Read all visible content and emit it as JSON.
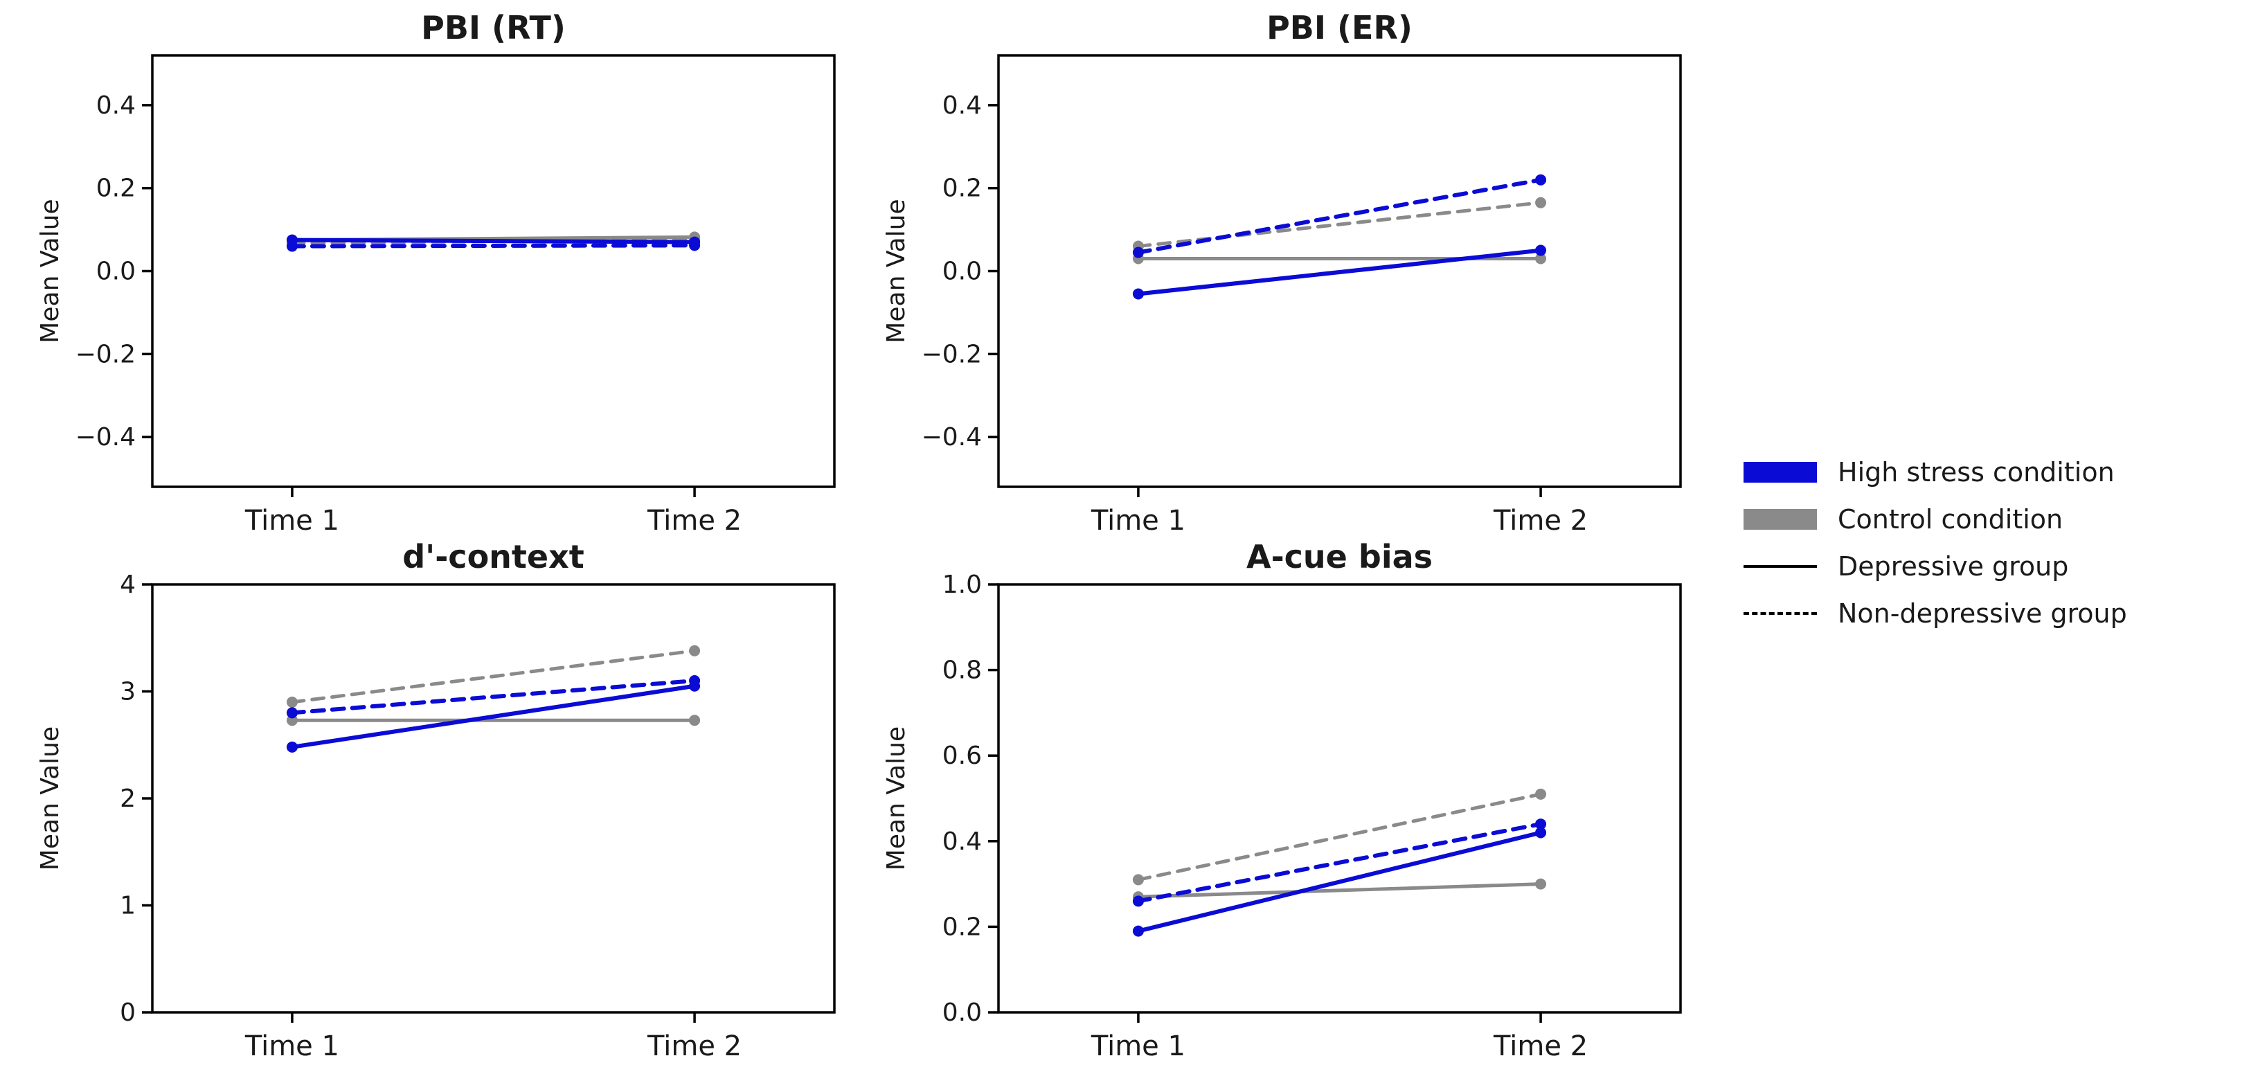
{
  "figure": {
    "background": "#ffffff",
    "axis_color": "#000000",
    "text_color": "#1a1a1a"
  },
  "palette": {
    "blue": "#0b0bd6",
    "gray": "#8a8a8a",
    "black": "#000000"
  },
  "legend": {
    "items": [
      {
        "label": "High stress condition",
        "swatch": "thick-bar",
        "color": "#0b0bd6"
      },
      {
        "label": "Control condition",
        "swatch": "thick-bar",
        "color": "#8a8a8a"
      },
      {
        "label": "Depressive group",
        "swatch": "thin-solid",
        "color": "#000000"
      },
      {
        "label": "Non-depressive group",
        "swatch": "thin-dashed",
        "color": "#000000"
      }
    ]
  },
  "chart_data": [
    {
      "type": "line",
      "title": "PBI (RT)",
      "ylabel": "Mean Value",
      "categories": [
        "Time 1",
        "Time 2"
      ],
      "ylim": [
        -0.52,
        0.52
      ],
      "yticks": [
        0.4,
        0.2,
        0.0,
        -0.2,
        -0.4
      ],
      "ytick_labels": [
        "0.4",
        "0.2",
        "0.0",
        "−0.2",
        "−0.4"
      ],
      "grid": false,
      "series": [
        {
          "name": "Control condition / Depressive group",
          "color": "gray",
          "style": "solid",
          "width": 5,
          "values": [
            0.075,
            0.082
          ]
        },
        {
          "name": "Control condition / Non-depressive group",
          "color": "gray",
          "style": "dashed",
          "width": 5,
          "values": [
            0.068,
            0.075
          ]
        },
        {
          "name": "High stress condition / Non-depressive group",
          "color": "blue",
          "style": "dashed",
          "width": 6,
          "values": [
            0.06,
            0.062
          ]
        },
        {
          "name": "High stress condition / Depressive group",
          "color": "blue",
          "style": "solid",
          "width": 6,
          "values": [
            0.075,
            0.07
          ]
        }
      ]
    },
    {
      "type": "line",
      "title": "PBI (ER)",
      "ylabel": "Mean Value",
      "categories": [
        "Time 1",
        "Time 2"
      ],
      "ylim": [
        -0.52,
        0.52
      ],
      "yticks": [
        0.4,
        0.2,
        0.0,
        -0.2,
        -0.4
      ],
      "ytick_labels": [
        "0.4",
        "0.2",
        "0.0",
        "−0.2",
        "−0.4"
      ],
      "grid": false,
      "series": [
        {
          "name": "Control condition / Depressive group",
          "color": "gray",
          "style": "solid",
          "width": 5,
          "values": [
            0.03,
            0.03
          ]
        },
        {
          "name": "Control condition / Non-depressive group",
          "color": "gray",
          "style": "dashed",
          "width": 5,
          "values": [
            0.06,
            0.165
          ]
        },
        {
          "name": "High stress condition / Non-depressive group",
          "color": "blue",
          "style": "dashed",
          "width": 6,
          "values": [
            0.045,
            0.22
          ]
        },
        {
          "name": "High stress condition / Depressive group",
          "color": "blue",
          "style": "solid",
          "width": 6,
          "values": [
            -0.055,
            0.05
          ]
        }
      ]
    },
    {
      "type": "line",
      "title": "d'-context",
      "ylabel": "Mean Value",
      "categories": [
        "Time 1",
        "Time 2"
      ],
      "ylim": [
        0,
        4
      ],
      "yticks": [
        4,
        3,
        2,
        1,
        0
      ],
      "ytick_labels": [
        "4",
        "3",
        "2",
        "1",
        "0"
      ],
      "grid": false,
      "series": [
        {
          "name": "Control condition / Depressive group",
          "color": "gray",
          "style": "solid",
          "width": 5,
          "values": [
            2.73,
            2.73
          ]
        },
        {
          "name": "Control condition / Non-depressive group",
          "color": "gray",
          "style": "dashed",
          "width": 5,
          "values": [
            2.9,
            3.38
          ]
        },
        {
          "name": "High stress condition / Non-depressive group",
          "color": "blue",
          "style": "dashed",
          "width": 6,
          "values": [
            2.8,
            3.1
          ]
        },
        {
          "name": "High stress condition / Depressive group",
          "color": "blue",
          "style": "solid",
          "width": 6,
          "values": [
            2.48,
            3.05
          ]
        }
      ]
    },
    {
      "type": "line",
      "title": "A-cue bias",
      "ylabel": "Mean Value",
      "categories": [
        "Time 1",
        "Time 2"
      ],
      "ylim": [
        0,
        1
      ],
      "yticks": [
        1.0,
        0.8,
        0.6,
        0.4,
        0.2,
        0.0
      ],
      "ytick_labels": [
        "1.0",
        "0.8",
        "0.6",
        "0.4",
        "0.2",
        "0.0"
      ],
      "grid": false,
      "series": [
        {
          "name": "Control condition / Depressive group",
          "color": "gray",
          "style": "solid",
          "width": 5,
          "values": [
            0.27,
            0.3
          ]
        },
        {
          "name": "Control condition / Non-depressive group",
          "color": "gray",
          "style": "dashed",
          "width": 5,
          "values": [
            0.31,
            0.51
          ]
        },
        {
          "name": "High stress condition / Non-depressive group",
          "color": "blue",
          "style": "dashed",
          "width": 6,
          "values": [
            0.26,
            0.44
          ]
        },
        {
          "name": "High stress condition / Depressive group",
          "color": "blue",
          "style": "solid",
          "width": 6,
          "values": [
            0.19,
            0.42
          ]
        }
      ]
    }
  ]
}
